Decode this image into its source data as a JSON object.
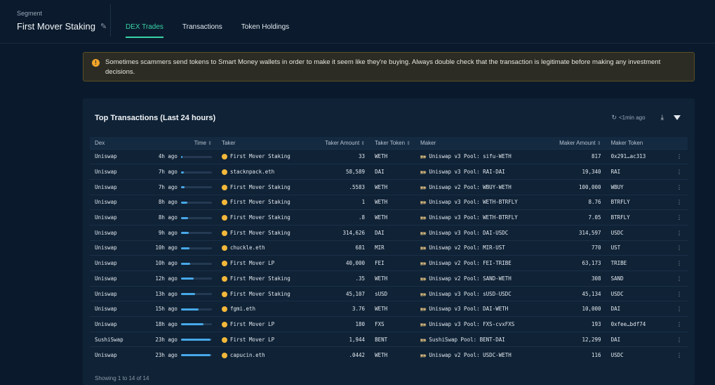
{
  "segment": {
    "label": "Segment",
    "name": "First Mover Staking"
  },
  "tabs": [
    {
      "label": "DEX Trades",
      "active": true
    },
    {
      "label": "Transactions",
      "active": false
    },
    {
      "label": "Token Holdings",
      "active": false
    }
  ],
  "warning": {
    "icon": "warning-icon",
    "text": "Sometimes scammers send tokens to Smart Money wallets in order to make it seem like they're buying. Always double check that the transaction is legitimate before making any investment decisions."
  },
  "card": {
    "title": "Top Transactions (Last 24 hours)",
    "updated": "<1min ago",
    "footer": "Showing 1 to 14 of 14"
  },
  "columns": {
    "dex": "Dex",
    "time": "Time",
    "taker": "Taker",
    "taker_amount": "Taker Amount",
    "taker_token": "Taker Token",
    "maker": "Maker",
    "maker_amount": "Maker Amount",
    "maker_token": "Maker Token"
  },
  "rows": [
    {
      "dex": "Uniswap",
      "time": "4h ago",
      "age": 0.04,
      "taker": "First Mover Staking",
      "taker_amount": "33",
      "taker_token": "WETH",
      "maker": "Uniswap v3 Pool: sifu-WETH",
      "maker_amount": "817",
      "maker_token": "0x291…ac313"
    },
    {
      "dex": "Uniswap",
      "time": "7h ago",
      "age": 0.1,
      "taker": "stacknpack.eth",
      "taker_amount": "58,589",
      "taker_token": "DAI",
      "maker": "Uniswap v3 Pool: RAI-DAI",
      "maker_amount": "19,340",
      "maker_token": "RAI"
    },
    {
      "dex": "Uniswap",
      "time": "7h ago",
      "age": 0.12,
      "taker": "First Mover Staking",
      "taker_amount": ".5583",
      "taker_token": "WETH",
      "maker": "Uniswap v2 Pool: WBUY-WETH",
      "maker_amount": "100,000",
      "maker_token": "WBUY"
    },
    {
      "dex": "Uniswap",
      "time": "8h ago",
      "age": 0.2,
      "taker": "First Mover Staking",
      "taker_amount": "1",
      "taker_token": "WETH",
      "maker": "Uniswap v3 Pool: WETH-BTRFLY",
      "maker_amount": "8.76",
      "maker_token": "BTRFLY"
    },
    {
      "dex": "Uniswap",
      "time": "8h ago",
      "age": 0.22,
      "taker": "First Mover Staking",
      "taker_amount": ".8",
      "taker_token": "WETH",
      "maker": "Uniswap v3 Pool: WETH-BTRFLY",
      "maker_amount": "7.05",
      "maker_token": "BTRFLY"
    },
    {
      "dex": "Uniswap",
      "time": "9h ago",
      "age": 0.24,
      "taker": "First Mover Staking",
      "taker_amount": "314,626",
      "taker_token": "DAI",
      "maker": "Uniswap v3 Pool: DAI-USDC",
      "maker_amount": "314,597",
      "maker_token": "USDC"
    },
    {
      "dex": "Uniswap",
      "time": "10h ago",
      "age": 0.28,
      "taker": "chuckle.eth",
      "taker_amount": "681",
      "taker_token": "MIR",
      "maker": "Uniswap v2 Pool: MIR-UST",
      "maker_amount": "770",
      "maker_token": "UST"
    },
    {
      "dex": "Uniswap",
      "time": "10h ago",
      "age": 0.3,
      "taker": "First Mover LP",
      "taker_amount": "40,000",
      "taker_token": "FEI",
      "maker": "Uniswap v2 Pool: FEI-TRIBE",
      "maker_amount": "63,173",
      "maker_token": "TRIBE"
    },
    {
      "dex": "Uniswap",
      "time": "12h ago",
      "age": 0.4,
      "taker": "First Mover Staking",
      "taker_amount": ".35",
      "taker_token": "WETH",
      "maker": "Uniswap v2 Pool: SAND-WETH",
      "maker_amount": "308",
      "maker_token": "SAND"
    },
    {
      "dex": "Uniswap",
      "time": "13h ago",
      "age": 0.46,
      "taker": "First Mover Staking",
      "taker_amount": "45,107",
      "taker_token": "sUSD",
      "maker": "Uniswap v3 Pool: sUSD-USDC",
      "maker_amount": "45,134",
      "maker_token": "USDC"
    },
    {
      "dex": "Uniswap",
      "time": "15h ago",
      "age": 0.58,
      "taker": "fgmi.eth",
      "taker_amount": "3.76",
      "taker_token": "WETH",
      "maker": "Uniswap v3 Pool: DAI-WETH",
      "maker_amount": "10,000",
      "maker_token": "DAI"
    },
    {
      "dex": "Uniswap",
      "time": "18h ago",
      "age": 0.72,
      "taker": "First Mover LP",
      "taker_amount": "180",
      "taker_token": "FXS",
      "maker": "Uniswap v3 Pool: FXS-cvxFXS",
      "maker_amount": "193",
      "maker_token": "0xfee…bdf74"
    },
    {
      "dex": "SushiSwap",
      "time": "23h ago",
      "age": 0.95,
      "taker": "First Mover LP",
      "taker_amount": "1,944",
      "taker_token": "BENT",
      "maker": "SushiSwap Pool: BENT-DAI",
      "maker_amount": "12,299",
      "maker_token": "DAI"
    },
    {
      "dex": "Uniswap",
      "time": "23h ago",
      "age": 0.96,
      "taker": "capucin.eth",
      "taker_amount": ".0442",
      "taker_token": "WETH",
      "maker": "Uniswap v2 Pool: USDC-WETH",
      "maker_amount": "116",
      "maker_token": "USDC"
    }
  ]
}
